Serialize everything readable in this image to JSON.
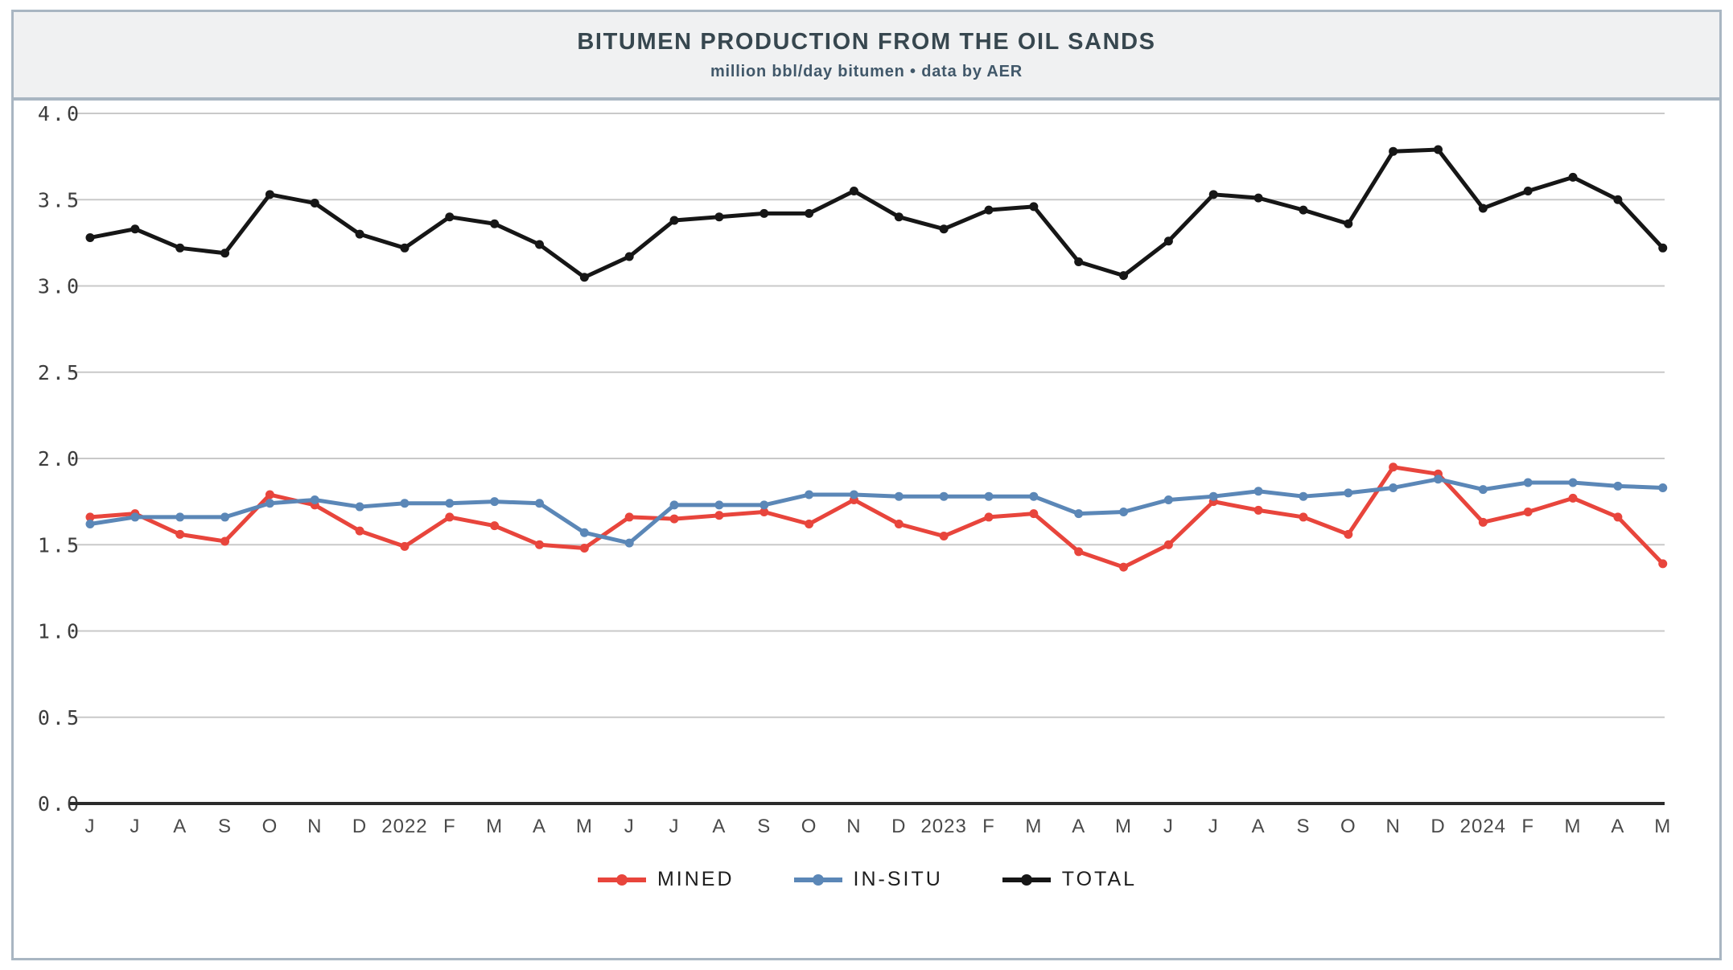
{
  "header": {
    "title": "BITUMEN PRODUCTION FROM THE OIL SANDS",
    "subtitle": "million bbl/day bitumen • data by AER"
  },
  "colors": {
    "frame_border": "#a9b6c2",
    "header_bg": "#f0f1f2",
    "title_text": "#37474f",
    "gridline": "#c9c9c9",
    "axis_line": "#2b2b2b",
    "mined": "#e8453c",
    "insitu": "#5b87b7",
    "total": "#161616"
  },
  "chart_data": {
    "type": "line",
    "title": "BITUMEN PRODUCTION FROM THE OIL SANDS",
    "subtitle": "million bbl/day bitumen • data by AER",
    "ylabel": "",
    "xlabel": "",
    "ylim": [
      0.0,
      4.0
    ],
    "ytick_step": 0.5,
    "ytick_labels": [
      "0.0",
      "0.5",
      "1.0",
      "1.5",
      "2.0",
      "2.5",
      "3.0",
      "3.5",
      "4.0"
    ],
    "grid": "horizontal",
    "legend_position": "bottom",
    "x_labels": [
      "J",
      "J",
      "A",
      "S",
      "O",
      "N",
      "D",
      "2022",
      "F",
      "M",
      "A",
      "M",
      "J",
      "J",
      "A",
      "S",
      "O",
      "N",
      "D",
      "2023",
      "F",
      "M",
      "A",
      "M",
      "J",
      "J",
      "A",
      "S",
      "O",
      "N",
      "D",
      "2024",
      "F",
      "M",
      "A",
      "M"
    ],
    "series": [
      {
        "name": "MINED",
        "color": "#e8453c",
        "values": [
          1.66,
          1.68,
          1.56,
          1.52,
          1.79,
          1.73,
          1.58,
          1.49,
          1.66,
          1.61,
          1.5,
          1.48,
          1.66,
          1.65,
          1.67,
          1.69,
          1.62,
          1.76,
          1.62,
          1.55,
          1.66,
          1.68,
          1.46,
          1.37,
          1.5,
          1.75,
          1.7,
          1.66,
          1.56,
          1.95,
          1.91,
          1.63,
          1.69,
          1.77,
          1.66,
          1.39
        ]
      },
      {
        "name": "IN-SITU",
        "color": "#5b87b7",
        "values": [
          1.62,
          1.66,
          1.66,
          1.66,
          1.74,
          1.76,
          1.72,
          1.74,
          1.74,
          1.75,
          1.74,
          1.57,
          1.51,
          1.73,
          1.73,
          1.73,
          1.79,
          1.79,
          1.78,
          1.78,
          1.78,
          1.78,
          1.68,
          1.69,
          1.76,
          1.78,
          1.81,
          1.78,
          1.8,
          1.83,
          1.88,
          1.82,
          1.86,
          1.86,
          1.84,
          1.83
        ]
      },
      {
        "name": "TOTAL",
        "color": "#161616",
        "values": [
          3.28,
          3.33,
          3.22,
          3.19,
          3.53,
          3.48,
          3.3,
          3.22,
          3.4,
          3.36,
          3.24,
          3.05,
          3.17,
          3.38,
          3.4,
          3.42,
          3.42,
          3.55,
          3.4,
          3.33,
          3.44,
          3.46,
          3.14,
          3.06,
          3.26,
          3.53,
          3.51,
          3.44,
          3.36,
          3.78,
          3.79,
          3.45,
          3.55,
          3.63,
          3.5,
          3.22
        ]
      }
    ]
  }
}
